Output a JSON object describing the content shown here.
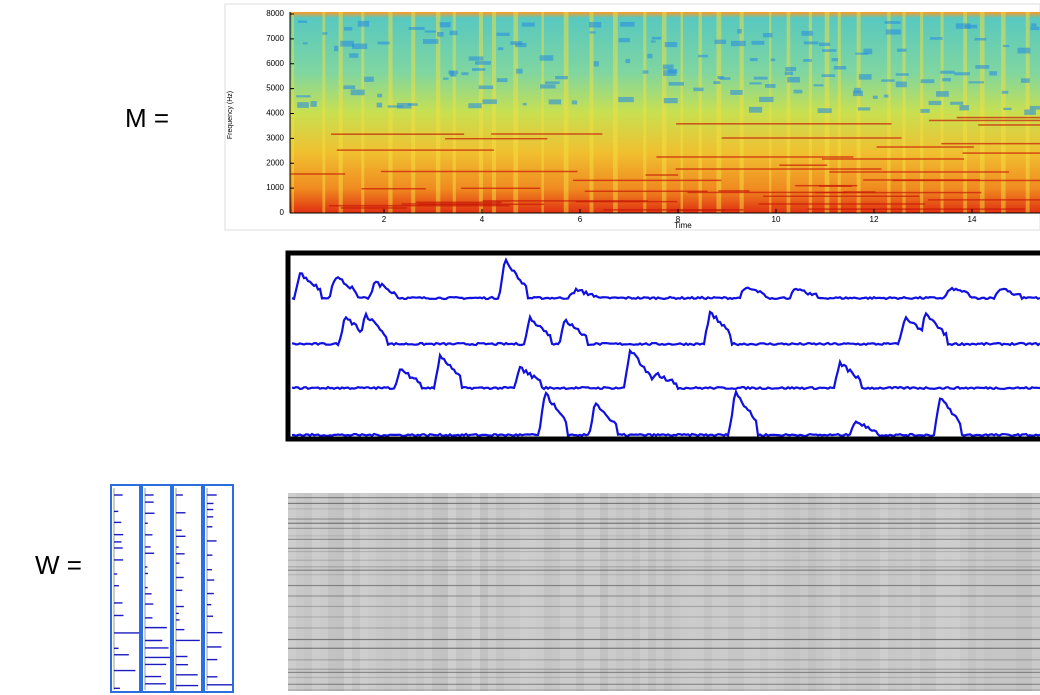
{
  "labels": {
    "m": "M =",
    "w": "W ="
  },
  "spectrogram": {
    "y_label": "Frequency (Hz)",
    "x_label": "Time",
    "yticks": [
      0,
      1000,
      2000,
      3000,
      4000,
      5000,
      6000,
      7000,
      8000
    ],
    "xticks": [
      2,
      4,
      6,
      8,
      10,
      12,
      14
    ]
  }
}
